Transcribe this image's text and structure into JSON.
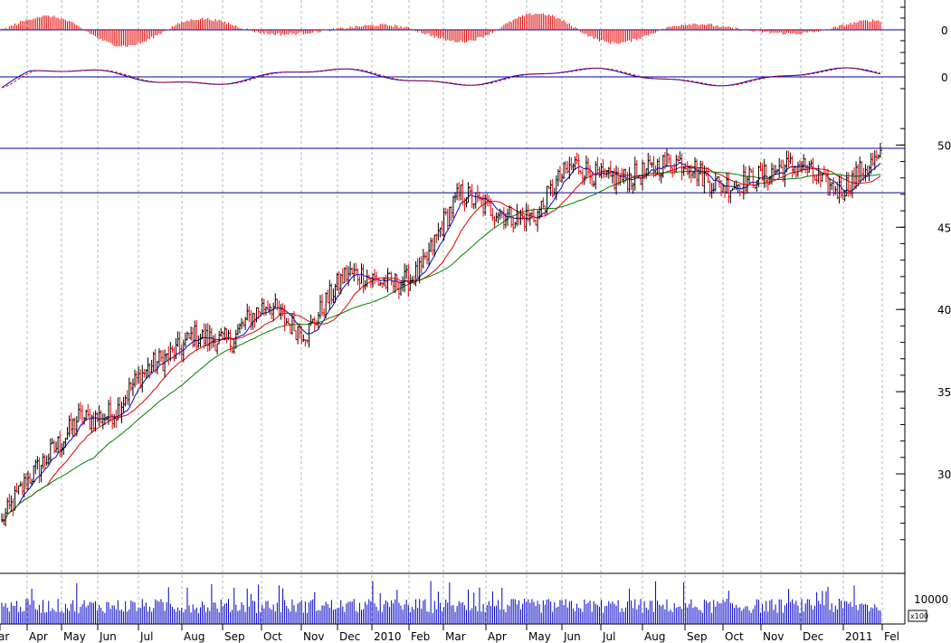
{
  "colors": {
    "up": "#000000",
    "down": "#e00000",
    "ma_short": "#0000c8",
    "ma_mid": "#e00000",
    "ma_long": "#008000",
    "hline": "#0000a0",
    "volume": "#0000c8",
    "grid": "#b4b4b4",
    "hist_up": "#e00000",
    "hist_down": "#e00000"
  },
  "chart_data": [
    {
      "type": "bar",
      "panel": "histogram-oscillator",
      "ylabel_ticks": [
        "0"
      ],
      "reference_line": 0,
      "description_values": "oscillating histogram around zero"
    },
    {
      "type": "line",
      "panel": "macd-oscillator",
      "ylabel_ticks": [
        "0"
      ],
      "reference_line": 0
    },
    {
      "type": "line",
      "panel": "price",
      "price_ticks": [
        "50",
        "45",
        "40",
        "35",
        "30"
      ],
      "ylim": [
        25.5,
        51.8
      ],
      "horizontal_lines": [
        49.8,
        47.1
      ],
      "month_labels": [
        "ar",
        "Apr",
        "May",
        "Jun",
        "Jul",
        "Aug",
        "Sep",
        "Oct",
        "Nov",
        "Dec",
        "2010",
        "Feb",
        "Mar",
        "Apr",
        "May",
        "Jun",
        "Jul",
        "Aug",
        "Sep",
        "Oct",
        "Nov",
        "Dec",
        "2011",
        "Fel"
      ],
      "series_close_by_month": [
        {
          "m": "Mar 2009",
          "v": 27.0
        },
        {
          "m": "Apr 2009",
          "v": 30.0
        },
        {
          "m": "May 2009",
          "v": 34.0
        },
        {
          "m": "Jun 2009",
          "v": 33.5
        },
        {
          "m": "Jul 2009",
          "v": 36.5
        },
        {
          "m": "Aug 2009",
          "v": 39.0
        },
        {
          "m": "Sep 2009",
          "v": 37.5
        },
        {
          "m": "Oct 2009",
          "v": 40.5
        },
        {
          "m": "Nov 2009",
          "v": 39.0
        },
        {
          "m": "Dec 2009",
          "v": 41.5
        },
        {
          "m": "Jan 2010",
          "v": 42.0
        },
        {
          "m": "Feb 2010",
          "v": 42.5
        },
        {
          "m": "Mar 2010",
          "v": 46.5
        },
        {
          "m": "Apr 2010",
          "v": 46.5
        },
        {
          "m": "May 2010",
          "v": 45.5
        },
        {
          "m": "Jun 2010",
          "v": 48.5
        },
        {
          "m": "Jul 2010",
          "v": 48.5
        },
        {
          "m": "Aug 2010",
          "v": 48.0
        },
        {
          "m": "Sep 2010",
          "v": 48.8
        },
        {
          "m": "Oct 2010",
          "v": 48.0
        },
        {
          "m": "Nov 2010",
          "v": 47.5
        },
        {
          "m": "Dec 2010",
          "v": 49.0
        },
        {
          "m": "Jan 2011",
          "v": 47.5
        },
        {
          "m": "Feb 2011",
          "v": 48.5
        }
      ]
    },
    {
      "type": "bar",
      "panel": "volume",
      "volume_tick": "10000",
      "volume_unit": "x100"
    }
  ]
}
